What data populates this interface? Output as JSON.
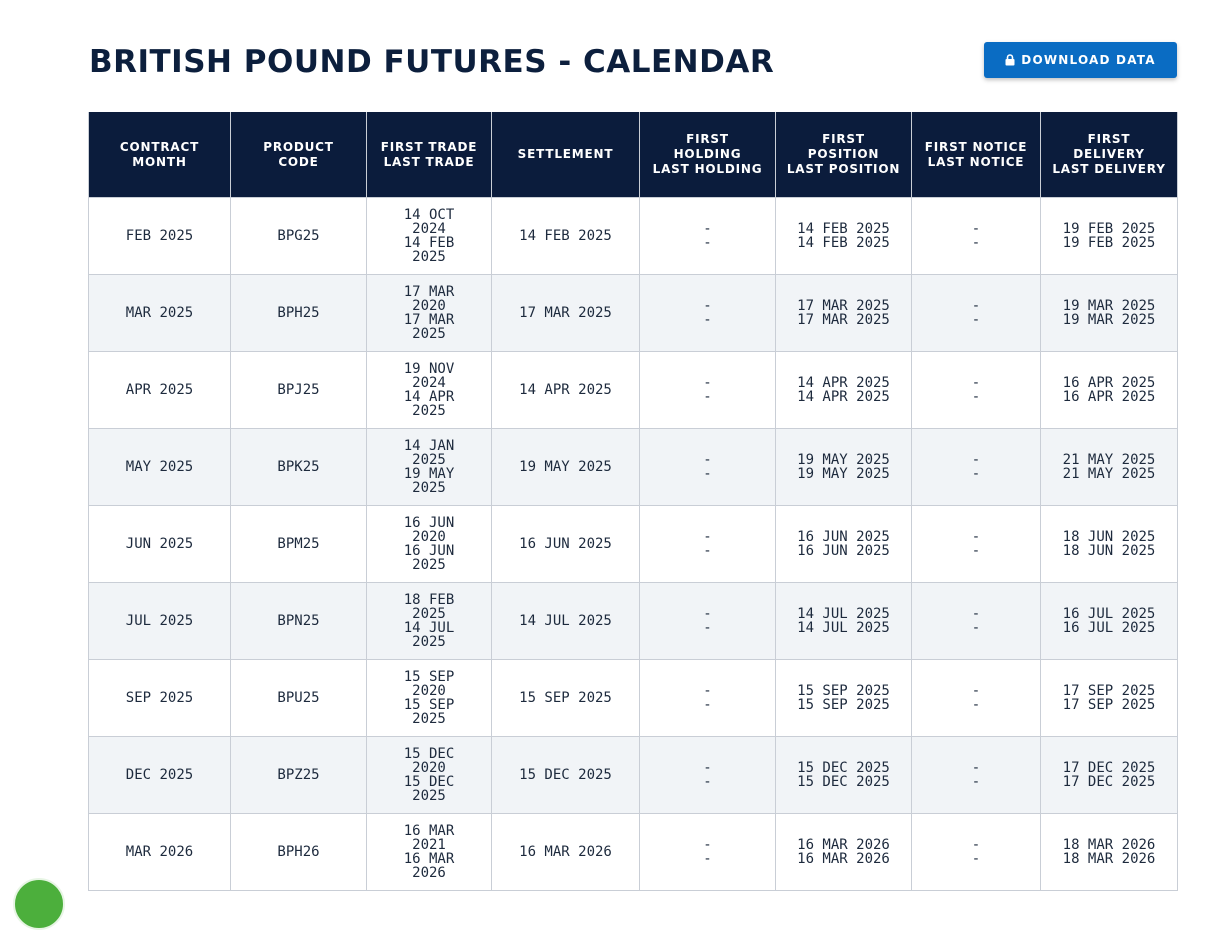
{
  "page": {
    "title": "BRITISH POUND FUTURES - CALENDAR",
    "download_label": "DOWNLOAD DATA"
  },
  "table": {
    "headers": {
      "contract_month": [
        "CONTRACT",
        "MONTH"
      ],
      "product_code": [
        "PRODUCT",
        "CODE"
      ],
      "trade": [
        "FIRST TRADE",
        "LAST TRADE"
      ],
      "settlement": [
        "SETTLEMENT"
      ],
      "holding": [
        "FIRST",
        "HOLDING",
        "LAST HOLDING"
      ],
      "position": [
        "FIRST",
        "POSITION",
        "LAST POSITION"
      ],
      "notice": [
        "FIRST NOTICE",
        "LAST NOTICE"
      ],
      "delivery": [
        "FIRST",
        "DELIVERY",
        "LAST DELIVERY"
      ]
    },
    "rows": [
      {
        "month": "FEB 2025",
        "code": "BPG25",
        "first_trade": "14 OCT 2024",
        "last_trade": "14 FEB 2025",
        "settlement": "14 FEB 2025",
        "first_holding": "-",
        "last_holding": "-",
        "first_position": "14 FEB 2025",
        "last_position": "14 FEB 2025",
        "first_notice": "-",
        "last_notice": "-",
        "first_delivery": "19 FEB 2025",
        "last_delivery": "19 FEB 2025"
      },
      {
        "month": "MAR 2025",
        "code": "BPH25",
        "first_trade": "17 MAR 2020",
        "last_trade": "17 MAR 2025",
        "settlement": "17 MAR 2025",
        "first_holding": "-",
        "last_holding": "-",
        "first_position": "17 MAR 2025",
        "last_position": "17 MAR 2025",
        "first_notice": "-",
        "last_notice": "-",
        "first_delivery": "19 MAR 2025",
        "last_delivery": "19 MAR 2025"
      },
      {
        "month": "APR 2025",
        "code": "BPJ25",
        "first_trade": "19 NOV 2024",
        "last_trade": "14 APR 2025",
        "settlement": "14 APR 2025",
        "first_holding": "-",
        "last_holding": "-",
        "first_position": "14 APR 2025",
        "last_position": "14 APR 2025",
        "first_notice": "-",
        "last_notice": "-",
        "first_delivery": "16 APR 2025",
        "last_delivery": "16 APR 2025"
      },
      {
        "month": "MAY 2025",
        "code": "BPK25",
        "first_trade": "14 JAN 2025",
        "last_trade": "19 MAY 2025",
        "settlement": "19 MAY 2025",
        "first_holding": "-",
        "last_holding": "-",
        "first_position": "19 MAY 2025",
        "last_position": "19 MAY 2025",
        "first_notice": "-",
        "last_notice": "-",
        "first_delivery": "21 MAY 2025",
        "last_delivery": "21 MAY 2025"
      },
      {
        "month": "JUN 2025",
        "code": "BPM25",
        "first_trade": "16 JUN 2020",
        "last_trade": "16 JUN 2025",
        "settlement": "16 JUN 2025",
        "first_holding": "-",
        "last_holding": "-",
        "first_position": "16 JUN 2025",
        "last_position": "16 JUN 2025",
        "first_notice": "-",
        "last_notice": "-",
        "first_delivery": "18 JUN 2025",
        "last_delivery": "18 JUN 2025"
      },
      {
        "month": "JUL 2025",
        "code": "BPN25",
        "first_trade": "18 FEB 2025",
        "last_trade": "14 JUL 2025",
        "settlement": "14 JUL 2025",
        "first_holding": "-",
        "last_holding": "-",
        "first_position": "14 JUL 2025",
        "last_position": "14 JUL 2025",
        "first_notice": "-",
        "last_notice": "-",
        "first_delivery": "16 JUL 2025",
        "last_delivery": "16 JUL 2025"
      },
      {
        "month": "SEP 2025",
        "code": "BPU25",
        "first_trade": "15 SEP 2020",
        "last_trade": "15 SEP 2025",
        "settlement": "15 SEP 2025",
        "first_holding": "-",
        "last_holding": "-",
        "first_position": "15 SEP 2025",
        "last_position": "15 SEP 2025",
        "first_notice": "-",
        "last_notice": "-",
        "first_delivery": "17 SEP 2025",
        "last_delivery": "17 SEP 2025"
      },
      {
        "month": "DEC 2025",
        "code": "BPZ25",
        "first_trade": "15 DEC 2020",
        "last_trade": "15 DEC 2025",
        "settlement": "15 DEC 2025",
        "first_holding": "-",
        "last_holding": "-",
        "first_position": "15 DEC 2025",
        "last_position": "15 DEC 2025",
        "first_notice": "-",
        "last_notice": "-",
        "first_delivery": "17 DEC 2025",
        "last_delivery": "17 DEC 2025"
      },
      {
        "month": "MAR 2026",
        "code": "BPH26",
        "first_trade": "16 MAR 2021",
        "last_trade": "16 MAR 2026",
        "settlement": "16 MAR 2026",
        "first_holding": "-",
        "last_holding": "-",
        "first_position": "16 MAR 2026",
        "last_position": "16 MAR 2026",
        "first_notice": "-",
        "last_notice": "-",
        "first_delivery": "18 MAR 2026",
        "last_delivery": "18 MAR 2026"
      }
    ]
  },
  "icons": {
    "download": "lock-icon",
    "chat": "chat-widget-icon"
  },
  "colors": {
    "header_bg": "#0b1c3c",
    "button_bg": "#0a6cc3",
    "row_alt_bg": "#f1f4f7",
    "title": "#0c1f3d"
  }
}
